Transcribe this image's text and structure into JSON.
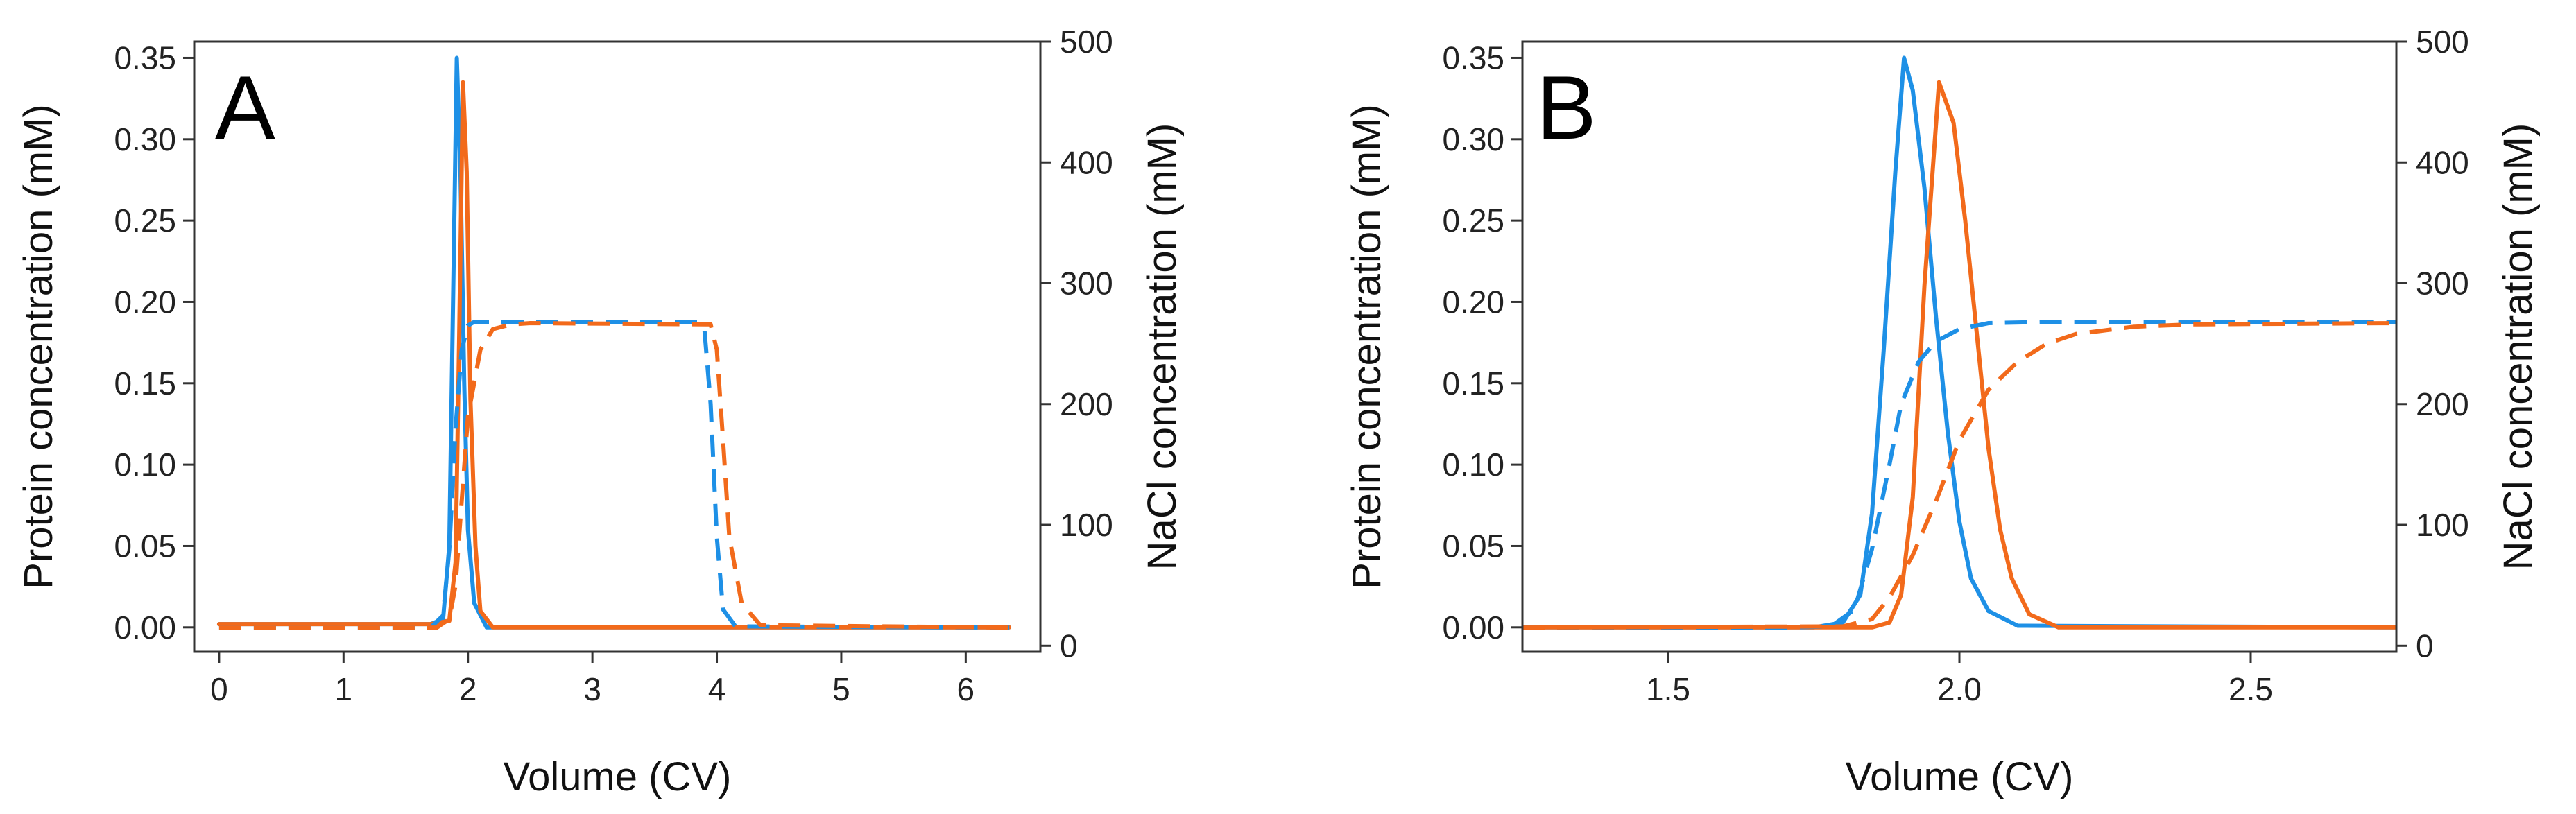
{
  "chart_data": [
    {
      "type": "line",
      "panel_label": "A",
      "xlabel": "Volume (CV)",
      "ylabel_left": "Protein concentration (mM)",
      "ylabel_right": "NaCl concentration (mM)",
      "xlim": [
        -0.2,
        6.6
      ],
      "ylim_left": [
        -0.015,
        0.36
      ],
      "ylim_right": [
        -5,
        500
      ],
      "xticks": [
        0,
        1,
        2,
        3,
        4,
        5,
        6
      ],
      "yticks_left": [
        "0.00",
        "0.05",
        "0.10",
        "0.15",
        "0.20",
        "0.25",
        "0.30",
        "0.35"
      ],
      "yticks_right": [
        "0",
        "100",
        "200",
        "300",
        "400",
        "500"
      ],
      "grid": false,
      "series": [
        {
          "axis": "left",
          "style": "solid",
          "color": "#1e90e6",
          "x": [
            0,
            1.7,
            1.8,
            1.85,
            1.88,
            1.91,
            1.94,
            1.97,
            2.0,
            2.05,
            2.15,
            4.0,
            6.35
          ],
          "y": [
            0.002,
            0.002,
            0.005,
            0.05,
            0.2,
            0.35,
            0.28,
            0.15,
            0.06,
            0.015,
            0.0,
            0.0,
            0.0
          ]
        },
        {
          "axis": "left",
          "style": "solid",
          "color": "#f26a1b",
          "x": [
            0,
            1.7,
            1.85,
            1.9,
            1.93,
            1.96,
            1.99,
            2.02,
            2.06,
            2.1,
            2.2,
            4.0,
            6.35
          ],
          "y": [
            0.002,
            0.002,
            0.004,
            0.04,
            0.18,
            0.335,
            0.28,
            0.14,
            0.05,
            0.01,
            0.0,
            0.0,
            0.0
          ]
        },
        {
          "axis": "right",
          "style": "dashed",
          "color": "#1e90e6",
          "x": [
            0,
            1.7,
            1.8,
            1.85,
            1.9,
            1.95,
            2.0,
            2.05,
            2.1,
            3.85,
            3.9,
            3.95,
            4.0,
            4.05,
            4.15,
            6.35
          ],
          "y": [
            15,
            15,
            25,
            80,
            180,
            245,
            265,
            268,
            268,
            268,
            262,
            200,
            90,
            30,
            16,
            15
          ]
        },
        {
          "axis": "right",
          "style": "dashed",
          "color": "#f26a1b",
          "x": [
            0,
            1.75,
            1.85,
            1.9,
            1.95,
            2.0,
            2.1,
            2.2,
            2.35,
            2.5,
            3.95,
            4.0,
            4.05,
            4.1,
            4.2,
            4.35,
            6.35
          ],
          "y": [
            15,
            15,
            22,
            50,
            120,
            190,
            245,
            262,
            266,
            267,
            266,
            245,
            170,
            90,
            35,
            17,
            15
          ]
        }
      ]
    },
    {
      "type": "line",
      "panel_label": "B",
      "xlabel": "Volume (CV)",
      "ylabel_left": "Protein concentration (mM)",
      "ylabel_right": "NaCl concentration (mM)",
      "xlim": [
        1.25,
        2.75
      ],
      "ylim_left": [
        -0.015,
        0.36
      ],
      "ylim_right": [
        -5,
        500
      ],
      "xticks": [
        "1.5",
        "2.0",
        "2.5"
      ],
      "yticks_left": [
        "0.00",
        "0.05",
        "0.10",
        "0.15",
        "0.20",
        "0.25",
        "0.30",
        "0.35"
      ],
      "yticks_right": [
        "0",
        "100",
        "200",
        "300",
        "400",
        "500"
      ],
      "grid": false,
      "series": [
        {
          "axis": "left",
          "style": "solid",
          "color": "#1e90e6",
          "x": [
            1.25,
            1.75,
            1.8,
            1.83,
            1.85,
            1.87,
            1.89,
            1.905,
            1.92,
            1.94,
            1.96,
            1.98,
            2.0,
            2.02,
            2.05,
            2.1,
            2.75
          ],
          "y": [
            0.0,
            0.0,
            0.003,
            0.02,
            0.07,
            0.17,
            0.28,
            0.35,
            0.33,
            0.27,
            0.19,
            0.12,
            0.065,
            0.03,
            0.01,
            0.001,
            0.0
          ]
        },
        {
          "axis": "left",
          "style": "solid",
          "color": "#f26a1b",
          "x": [
            1.25,
            1.85,
            1.88,
            1.9,
            1.92,
            1.94,
            1.965,
            1.99,
            2.01,
            2.03,
            2.05,
            2.07,
            2.09,
            2.12,
            2.17,
            2.75
          ],
          "y": [
            0.0,
            0.0,
            0.003,
            0.02,
            0.08,
            0.21,
            0.335,
            0.31,
            0.25,
            0.18,
            0.11,
            0.06,
            0.03,
            0.008,
            0.0,
            0.0
          ]
        },
        {
          "axis": "right",
          "style": "dashed",
          "color": "#1e90e6",
          "x": [
            1.25,
            1.7,
            1.78,
            1.82,
            1.85,
            1.88,
            1.9,
            1.93,
            1.96,
            2.0,
            2.05,
            2.15,
            2.75
          ],
          "y": [
            15,
            15,
            16,
            30,
            80,
            150,
            200,
            235,
            252,
            262,
            267,
            268,
            268
          ]
        },
        {
          "axis": "right",
          "style": "dashed",
          "color": "#f26a1b",
          "x": [
            1.25,
            1.8,
            1.85,
            1.88,
            1.92,
            1.96,
            2.0,
            2.05,
            2.1,
            2.15,
            2.2,
            2.3,
            2.4,
            2.75
          ],
          "y": [
            15,
            16,
            22,
            40,
            75,
            120,
            170,
            212,
            235,
            250,
            258,
            264,
            266,
            267
          ]
        }
      ]
    }
  ]
}
